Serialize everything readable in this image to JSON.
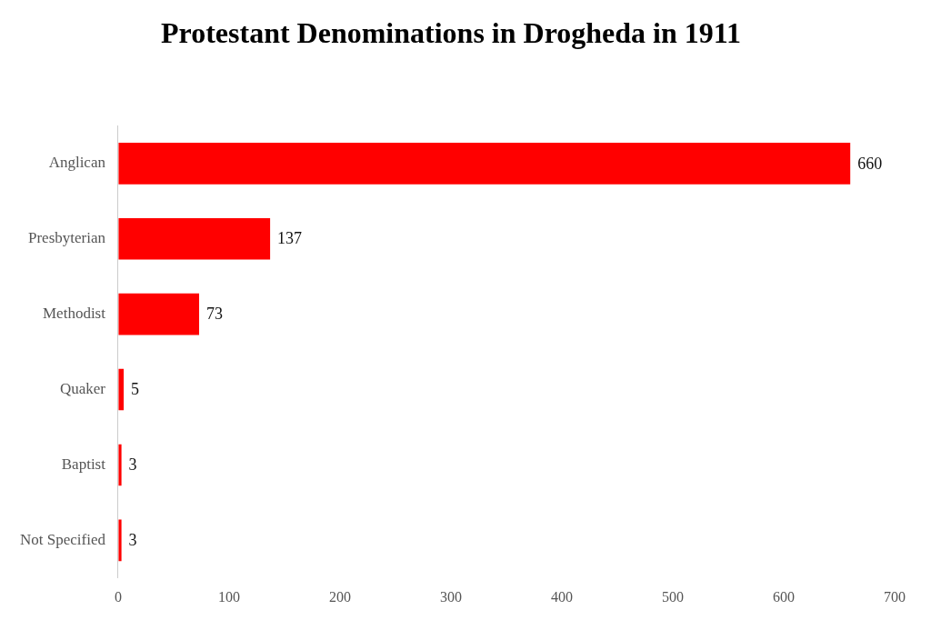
{
  "chart_data": {
    "type": "bar",
    "title": "Protestant Denominations in Drogheda in 1911",
    "orientation": "horizontal",
    "categories": [
      "Anglican",
      "Presbyterian",
      "Methodist",
      "Quaker",
      "Baptist",
      "Not Specified"
    ],
    "values": [
      660,
      137,
      73,
      5,
      3,
      3
    ],
    "color": "#ff0000",
    "xlim": [
      0,
      700
    ],
    "xticks": [
      0,
      100,
      200,
      300,
      400,
      500,
      600,
      700
    ],
    "grid": false,
    "data_labels": true
  }
}
